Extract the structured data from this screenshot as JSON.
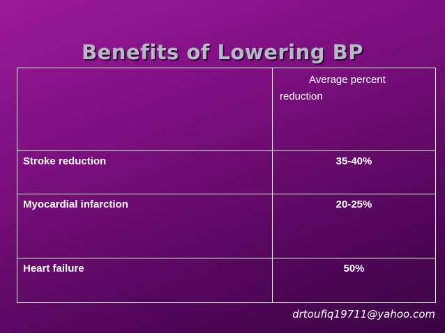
{
  "slide": {
    "title": "Benefits of Lowering BP",
    "footer": "drtoufiq19711@yahoo.com"
  },
  "table": {
    "header": {
      "col1": "",
      "col2_line1": "Average percent",
      "col2_line2": "reduction"
    },
    "rows": [
      {
        "label": "Stroke reduction",
        "value": "35-40%"
      },
      {
        "label": "Myocardial infarction",
        "value": "20-25%"
      },
      {
        "label": "Heart failure",
        "value": "50%"
      }
    ]
  }
}
